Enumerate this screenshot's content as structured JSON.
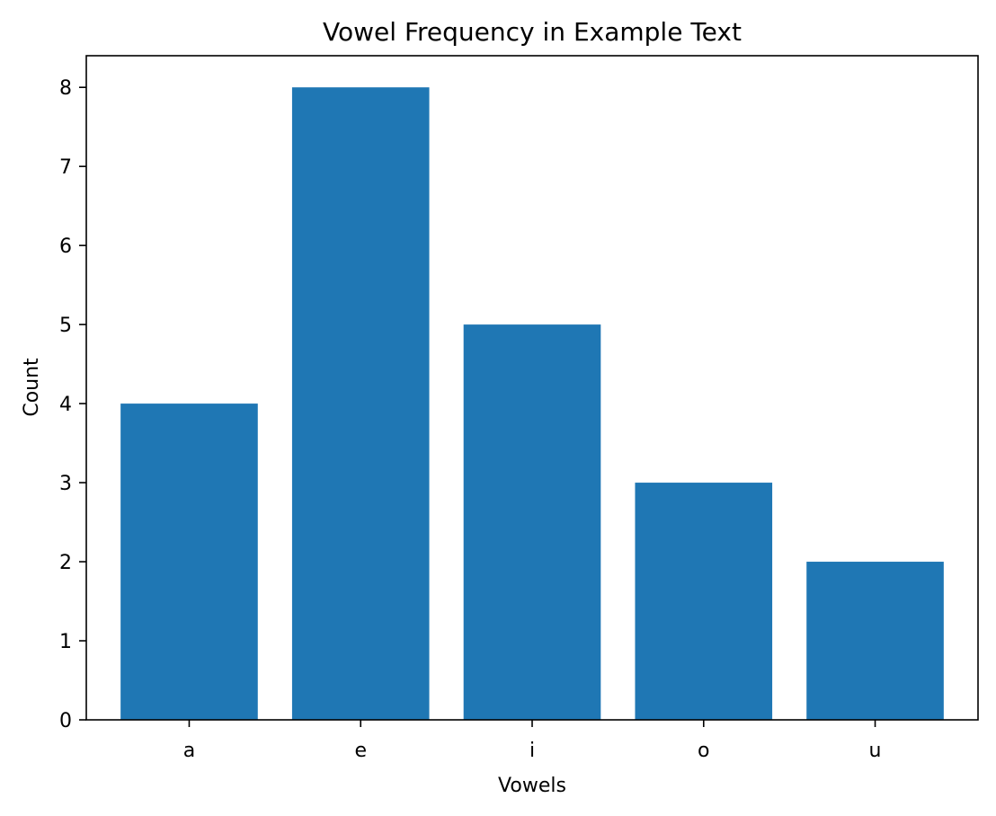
{
  "chart_data": {
    "type": "bar",
    "title": "Vowel Frequency in Example Text",
    "xlabel": "Vowels",
    "ylabel": "Count",
    "categories": [
      "a",
      "e",
      "i",
      "o",
      "u"
    ],
    "values": [
      4,
      8,
      5,
      3,
      2
    ],
    "ylim": [
      0,
      8.4
    ],
    "yticks": [
      0,
      1,
      2,
      3,
      4,
      5,
      6,
      7,
      8
    ],
    "bar_color": "#1f77b4",
    "grid": false,
    "legend": "none"
  }
}
